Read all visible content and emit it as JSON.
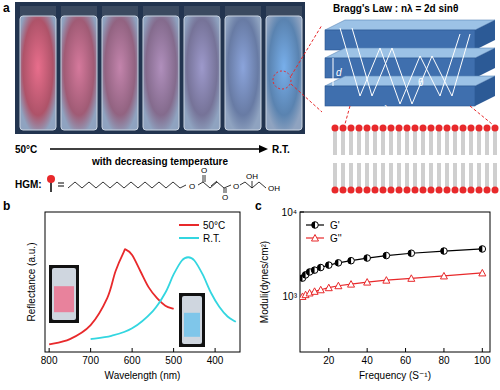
{
  "panel_a": {
    "panel_label": "a",
    "start": "50°C",
    "end": "R.T.",
    "arrow_text": "with decreasing temperature",
    "molecule_label": "HGM:",
    "atoms": [
      "O",
      "O",
      "O",
      "O",
      "OH",
      "OH"
    ],
    "bragg_law": "Bragg's Law : nλ = 2d sinθ",
    "schematic_labels": [
      "d",
      "λ",
      "θ"
    ]
  },
  "chart_data": [
    {
      "type": "line",
      "panel_label": "b",
      "x_label": "Wavelength (nm)",
      "y_label": "Reflectance (a.u.)",
      "xlim": [
        810,
        340
      ],
      "xticks": [
        800,
        700,
        600,
        500,
        400
      ],
      "ylim": [
        0,
        1.3
      ],
      "tick_labels": "x",
      "legend": "top-right",
      "series": [
        {
          "name": "50°C",
          "color": "#e8292b",
          "x": [
            800,
            750,
            700,
            660,
            640,
            620,
            615,
            600,
            580,
            560,
            540,
            520,
            500
          ],
          "values": [
            0.07,
            0.12,
            0.25,
            0.5,
            0.75,
            0.93,
            0.95,
            0.9,
            0.75,
            0.6,
            0.5,
            0.43,
            0.4
          ]
        },
        {
          "name": "R.T.",
          "color": "#33d6e0",
          "x": [
            700,
            650,
            600,
            550,
            520,
            500,
            480,
            465,
            450,
            430,
            410,
            390,
            370,
            350
          ],
          "values": [
            0.12,
            0.15,
            0.22,
            0.38,
            0.55,
            0.72,
            0.85,
            0.88,
            0.85,
            0.72,
            0.55,
            0.42,
            0.33,
            0.28
          ]
        }
      ]
    },
    {
      "type": "line",
      "panel_label": "c",
      "x_label": "Frequency (S⁻¹)",
      "y_label": "Moduli(dynes/cm²)",
      "log": "y",
      "xlim": [
        5,
        104
      ],
      "xticks": [
        20,
        40,
        60,
        80,
        100
      ],
      "ylim": [
        220,
        10000
      ],
      "yticks": [
        {
          "value": 1000,
          "label": "10³"
        },
        {
          "value": 10000,
          "label": "10⁴"
        }
      ],
      "legend": "top-left",
      "series": [
        {
          "name": "G'",
          "color": "#000000",
          "marker": "half-circle",
          "x": [
            6.3,
            7.9,
            10,
            12.6,
            15.8,
            20,
            25,
            31.6,
            40,
            50,
            63,
            80,
            100
          ],
          "values": [
            1650,
            1800,
            1950,
            2050,
            2200,
            2350,
            2500,
            2650,
            2850,
            3050,
            3250,
            3450,
            3650
          ]
        },
        {
          "name": "G''",
          "color": "#e8292b",
          "marker": "triangle",
          "x": [
            6.3,
            7.9,
            10,
            12.6,
            15.8,
            20,
            25,
            31.6,
            40,
            50,
            63,
            80,
            100
          ],
          "values": [
            1000,
            1050,
            1100,
            1150,
            1200,
            1270,
            1340,
            1400,
            1480,
            1560,
            1640,
            1750,
            1900
          ]
        }
      ]
    }
  ]
}
